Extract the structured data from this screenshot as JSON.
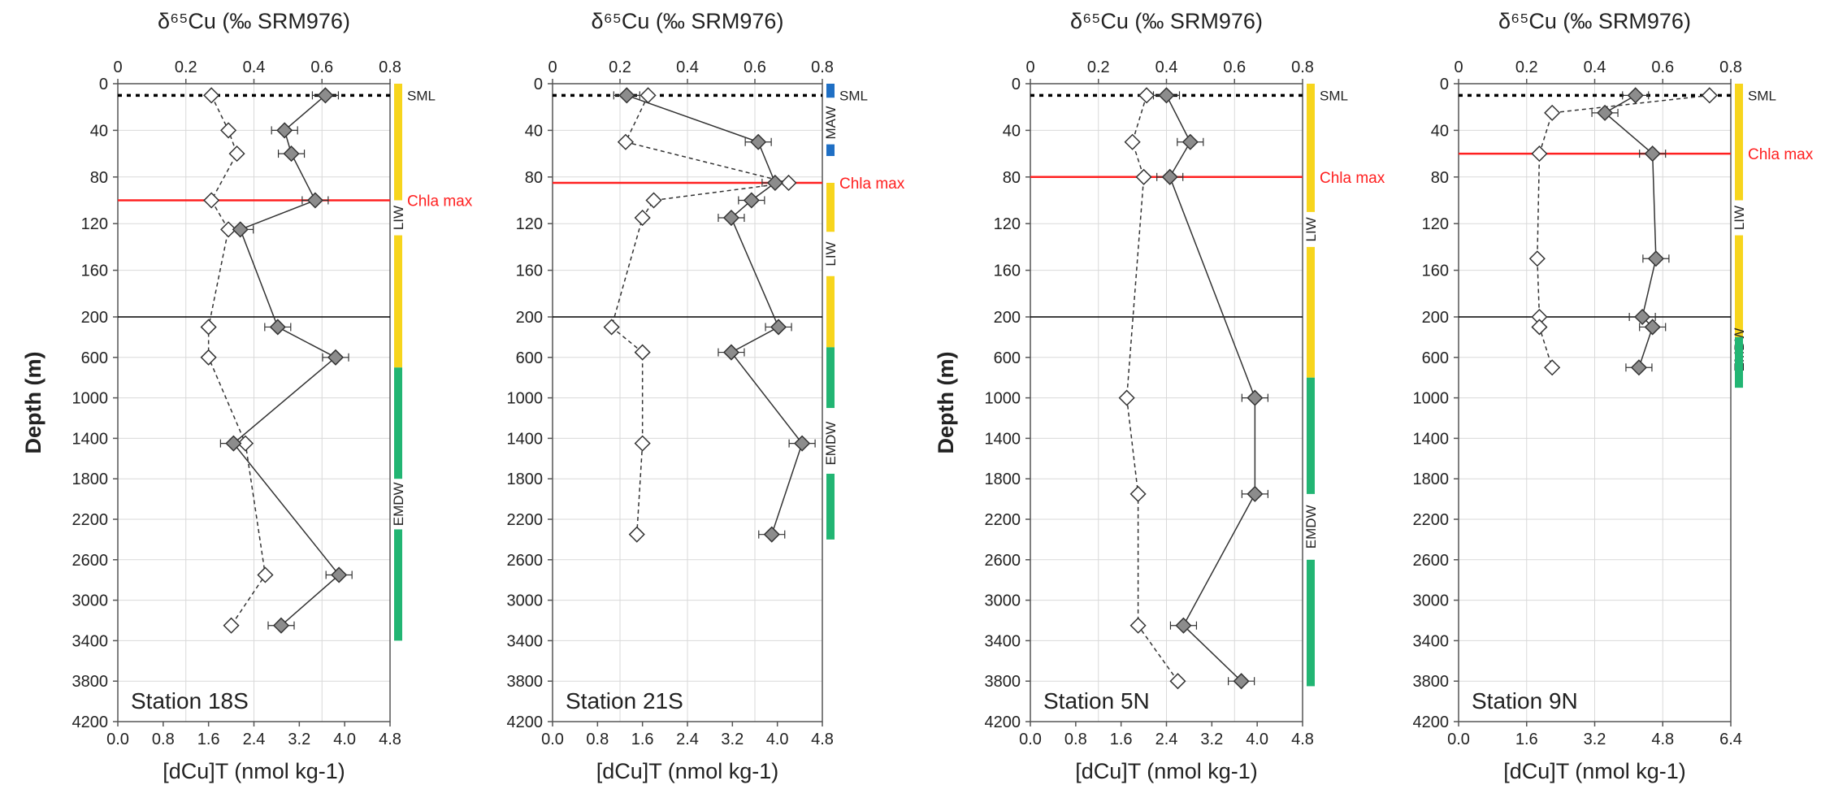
{
  "colors": {
    "solid_marker": "#8c8c8c",
    "open_marker": "#ffffff",
    "chl_line": "#ff2020",
    "sml_line": "#000000",
    "grid": "#d9d9d9",
    "water_masses": {
      "yellow": "#f7d51d",
      "green": "#22b573",
      "blue": "#1f6fc4"
    }
  },
  "chart_data": [
    {
      "type": "scatter",
      "station": "Station 18S",
      "top_axis_label": "δ⁶⁵Cu (‰ SRM976)",
      "bottom_axis_label": "[dCu]T (nmol kg-1)",
      "ylabel": "Depth (m)",
      "top_ticks": [
        "0",
        "0.2",
        "0.4",
        "0.6",
        "0.8"
      ],
      "bottom_ticks": [
        "0.0",
        "0.8",
        "1.6",
        "2.4",
        "3.2",
        "4.0",
        "4.8"
      ],
      "depth_ticks": [
        "0",
        "40",
        "80",
        "120",
        "160",
        "200",
        "600",
        "1000",
        "1400",
        "1800",
        "2200",
        "2600",
        "3000",
        "3400",
        "3800",
        "4200"
      ],
      "top_range": [
        0,
        0.8
      ],
      "bottom_range": [
        0,
        4.8
      ],
      "depth_range": [
        0,
        4200
      ],
      "depth_scale": "split: linear 0-200 m upper part, linear 200-4200 m lower part",
      "series": [
        {
          "name": "δ65Cu",
          "marker": "filled-diamond",
          "axis": "top",
          "points": [
            [
              0.61,
              10
            ],
            [
              0.49,
              40
            ],
            [
              0.51,
              60
            ],
            [
              0.58,
              100
            ],
            [
              0.36,
              125
            ],
            [
              0.47,
              300
            ],
            [
              0.64,
              600
            ],
            [
              0.34,
              1450
            ],
            [
              0.65,
              2750
            ],
            [
              0.48,
              3250
            ]
          ]
        },
        {
          "name": "dCu",
          "marker": "open-diamond",
          "axis": "bottom",
          "points": [
            [
              1.65,
              10
            ],
            [
              1.95,
              40
            ],
            [
              2.1,
              60
            ],
            [
              1.65,
              100
            ],
            [
              1.95,
              125
            ],
            [
              1.6,
              300
            ],
            [
              1.6,
              600
            ],
            [
              2.25,
              1450
            ],
            [
              2.6,
              2750
            ],
            [
              2.0,
              3250
            ]
          ]
        }
      ],
      "sml_depth": 10,
      "chl_max_depth": 100,
      "chl_label": "Chla max",
      "water_masses": [
        {
          "label": "SML",
          "color": "none",
          "from": 0,
          "to": 10
        },
        {
          "label": "",
          "color": "yellow",
          "from": 0,
          "to": 100
        },
        {
          "label": "LIW",
          "color": "none",
          "from": 100,
          "to": 130
        },
        {
          "label": "",
          "color": "yellow",
          "from": 130,
          "to": 700
        },
        {
          "label": "",
          "color": "green",
          "from": 700,
          "to": 1800
        },
        {
          "label": "EMDW",
          "color": "none",
          "from": 1800,
          "to": 2300
        },
        {
          "label": "",
          "color": "green",
          "from": 2300,
          "to": 3400
        }
      ]
    },
    {
      "type": "scatter",
      "station": "Station 21S",
      "top_axis_label": "δ⁶⁵Cu (‰ SRM976)",
      "bottom_axis_label": "[dCu]T (nmol kg-1)",
      "top_ticks": [
        "0",
        "0.2",
        "0.4",
        "0.6",
        "0.8"
      ],
      "bottom_ticks": [
        "0.0",
        "0.8",
        "1.6",
        "2.4",
        "3.2",
        "4.0",
        "4.8"
      ],
      "depth_ticks": [
        "0",
        "40",
        "80",
        "120",
        "160",
        "200",
        "600",
        "1000",
        "1400",
        "1800",
        "2200",
        "2600",
        "3000",
        "3400",
        "3800",
        "4200"
      ],
      "top_range": [
        0,
        0.8
      ],
      "bottom_range": [
        0,
        4.8
      ],
      "depth_range": [
        0,
        4200
      ],
      "series": [
        {
          "name": "δ65Cu",
          "marker": "filled-diamond",
          "axis": "top",
          "points": [
            [
              0.22,
              10
            ],
            [
              0.61,
              50
            ],
            [
              0.66,
              85
            ],
            [
              0.59,
              100
            ],
            [
              0.53,
              115
            ],
            [
              0.67,
              300
            ],
            [
              0.53,
              550
            ],
            [
              0.74,
              1450
            ],
            [
              0.65,
              2350
            ]
          ]
        },
        {
          "name": "dCu",
          "marker": "open-diamond",
          "axis": "bottom",
          "points": [
            [
              1.7,
              10
            ],
            [
              1.3,
              50
            ],
            [
              4.2,
              85
            ],
            [
              1.8,
              100
            ],
            [
              1.6,
              115
            ],
            [
              1.05,
              300
            ],
            [
              1.6,
              550
            ],
            [
              1.6,
              1450
            ],
            [
              1.5,
              2350
            ]
          ]
        }
      ],
      "sml_depth": 10,
      "chl_max_depth": 85,
      "chl_label": "Chla max",
      "water_masses": [
        {
          "label": "",
          "color": "blue",
          "from": 0,
          "to": 12
        },
        {
          "label": "SML",
          "color": "none",
          "from": 0,
          "to": 12
        },
        {
          "label": "MAW",
          "color": "none",
          "from": 15,
          "to": 52
        },
        {
          "label": "",
          "color": "blue",
          "from": 52,
          "to": 62
        },
        {
          "label": "",
          "color": "yellow",
          "from": 85,
          "to": 127
        },
        {
          "label": "LIW",
          "color": "none",
          "from": 127,
          "to": 165
        },
        {
          "label": "",
          "color": "yellow",
          "from": 165,
          "to": 500
        },
        {
          "label": "",
          "color": "green",
          "from": 500,
          "to": 1100
        },
        {
          "label": "EMDW",
          "color": "none",
          "from": 1150,
          "to": 1750
        },
        {
          "label": "",
          "color": "green",
          "from": 1750,
          "to": 2400
        }
      ]
    },
    {
      "type": "scatter",
      "station": "Station 5N",
      "top_axis_label": "δ⁶⁵Cu (‰ SRM976)",
      "bottom_axis_label": "[dCu]T (nmol kg-1)",
      "ylabel": "Depth (m)",
      "top_ticks": [
        "0",
        "0.2",
        "0.4",
        "0.6",
        "0.8"
      ],
      "bottom_ticks": [
        "0.0",
        "0.8",
        "1.6",
        "2.4",
        "3.2",
        "4.0",
        "4.8"
      ],
      "depth_ticks": [
        "0",
        "40",
        "80",
        "120",
        "160",
        "200",
        "600",
        "1000",
        "1400",
        "1800",
        "2200",
        "2600",
        "3000",
        "3400",
        "3800",
        "4200"
      ],
      "top_range": [
        0,
        0.8
      ],
      "bottom_range": [
        0,
        4.8
      ],
      "depth_range": [
        0,
        4200
      ],
      "series": [
        {
          "name": "δ65Cu",
          "marker": "filled-diamond",
          "axis": "top",
          "points": [
            [
              0.4,
              10
            ],
            [
              0.47,
              50
            ],
            [
              0.41,
              80
            ],
            [
              0.66,
              1000
            ],
            [
              0.66,
              1950
            ],
            [
              0.45,
              3250
            ],
            [
              0.62,
              3800
            ]
          ]
        },
        {
          "name": "dCu",
          "marker": "open-diamond",
          "axis": "bottom",
          "points": [
            [
              2.05,
              10
            ],
            [
              1.8,
              50
            ],
            [
              2.0,
              80
            ],
            [
              1.7,
              1000
            ],
            [
              1.9,
              1950
            ],
            [
              1.9,
              3250
            ],
            [
              2.6,
              3800
            ]
          ]
        }
      ],
      "sml_depth": 10,
      "chl_max_depth": 80,
      "chl_label": "Chla max",
      "water_masses": [
        {
          "label": "SML",
          "color": "none",
          "from": 0,
          "to": 10
        },
        {
          "label": "",
          "color": "yellow",
          "from": 0,
          "to": 110
        },
        {
          "label": "LIW",
          "color": "none",
          "from": 110,
          "to": 140
        },
        {
          "label": "",
          "color": "yellow",
          "from": 140,
          "to": 800
        },
        {
          "label": "",
          "color": "green",
          "from": 800,
          "to": 1950
        },
        {
          "label": "EMDW",
          "color": "none",
          "from": 1950,
          "to": 2600
        },
        {
          "label": "",
          "color": "green",
          "from": 2600,
          "to": 3850
        }
      ]
    },
    {
      "type": "scatter",
      "station": "Station 9N",
      "top_axis_label": "δ⁶⁵Cu (‰ SRM976)",
      "bottom_axis_label": "[dCu]T (nmol kg-1)",
      "top_ticks": [
        "0",
        "0.2",
        "0.4",
        "0.6",
        "0.8"
      ],
      "bottom_ticks": [
        "0.0",
        "1.6",
        "3.2",
        "4.8",
        "6.4"
      ],
      "depth_ticks": [
        "0",
        "40",
        "80",
        "120",
        "160",
        "200",
        "600",
        "1000",
        "1400",
        "1800",
        "2200",
        "2600",
        "3000",
        "3400",
        "3800",
        "4200"
      ],
      "top_range": [
        0,
        0.8
      ],
      "bottom_range": [
        0,
        6.4
      ],
      "depth_range": [
        0,
        4200
      ],
      "series": [
        {
          "name": "δ65Cu",
          "marker": "filled-diamond",
          "axis": "top",
          "points": [
            [
              0.52,
              10
            ],
            [
              0.43,
              25
            ],
            [
              0.57,
              60
            ],
            [
              0.58,
              150
            ],
            [
              0.54,
              200
            ],
            [
              0.57,
              300
            ],
            [
              0.53,
              700
            ]
          ]
        },
        {
          "name": "dCu",
          "marker": "open-diamond",
          "axis": "bottom",
          "points": [
            [
              5.9,
              10
            ],
            [
              2.2,
              25
            ],
            [
              1.9,
              60
            ],
            [
              1.85,
              150
            ],
            [
              1.9,
              200
            ],
            [
              1.9,
              300
            ],
            [
              2.2,
              700
            ]
          ]
        }
      ],
      "sml_depth": 10,
      "chl_max_depth": 60,
      "chl_label": "Chla max",
      "water_masses": [
        {
          "label": "SML",
          "color": "none",
          "from": 0,
          "to": 10
        },
        {
          "label": "",
          "color": "yellow",
          "from": 0,
          "to": 100
        },
        {
          "label": "LIW",
          "color": "none",
          "from": 100,
          "to": 130
        },
        {
          "label": "",
          "color": "yellow",
          "from": 130,
          "to": 400
        },
        {
          "label": "EMDW",
          "color": "none",
          "from": 400,
          "to": 650
        },
        {
          "label": "",
          "color": "green",
          "from": 400,
          "to": 900
        }
      ]
    }
  ]
}
